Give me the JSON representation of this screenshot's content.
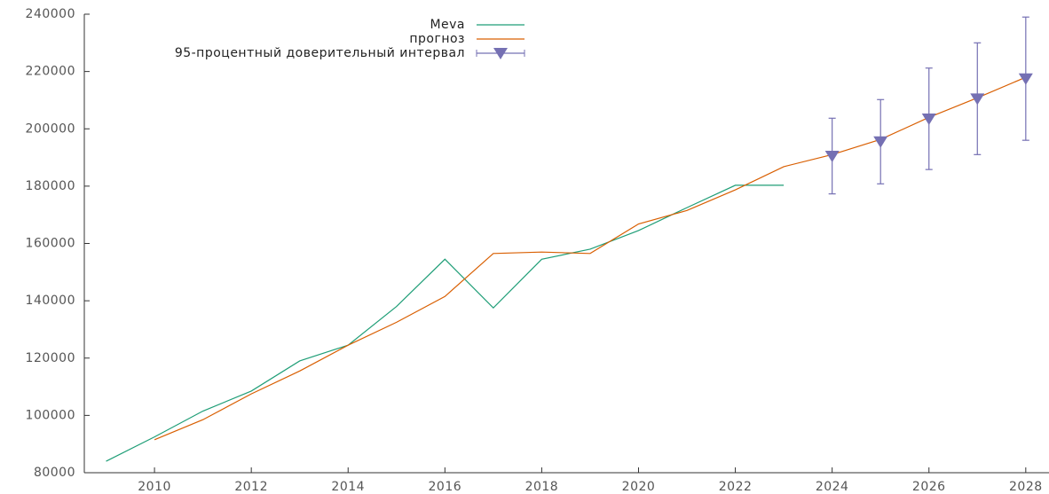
{
  "chart_data": {
    "type": "line",
    "x": [
      2009,
      2010,
      2011,
      2012,
      2013,
      2014,
      2015,
      2016,
      2017,
      2018,
      2019,
      2020,
      2021,
      2022,
      2023,
      2024,
      2025,
      2026,
      2027,
      2028
    ],
    "series": [
      {
        "name": "Meva",
        "color": "#1f9e77",
        "values": [
          84000,
          92500,
          101500,
          108500,
          119000,
          124500,
          138000,
          154500,
          137500,
          154500,
          158000,
          164500,
          172500,
          180300,
          180300,
          null,
          null,
          null,
          null,
          null
        ]
      },
      {
        "name": "прогноз",
        "color": "#d95f02",
        "values": [
          null,
          91500,
          98500,
          107500,
          115500,
          124500,
          132500,
          141500,
          156500,
          157000,
          156500,
          166800,
          171500,
          178700,
          186800,
          191000,
          196300,
          204000,
          210800,
          218000
        ]
      },
      {
        "name": "95-процентный доверительный интервал",
        "color": "#7570b3",
        "values": [
          null,
          null,
          null,
          null,
          null,
          null,
          null,
          null,
          null,
          null,
          null,
          null,
          null,
          null,
          null,
          190500,
          195500,
          203500,
          210500,
          217500
        ],
        "errors": [
          null,
          null,
          null,
          null,
          null,
          null,
          null,
          null,
          null,
          null,
          null,
          null,
          null,
          null,
          null,
          13200,
          14700,
          17700,
          19500,
          21500
        ]
      }
    ],
    "xlim": [
      2008.55,
      2028.48
    ],
    "xticks": [
      2010,
      2012,
      2014,
      2016,
      2018,
      2020,
      2022,
      2024,
      2026,
      2028
    ],
    "ylim": [
      80000,
      240000
    ],
    "yticks": [
      80000,
      100000,
      120000,
      140000,
      160000,
      180000,
      200000,
      220000,
      240000
    ]
  }
}
